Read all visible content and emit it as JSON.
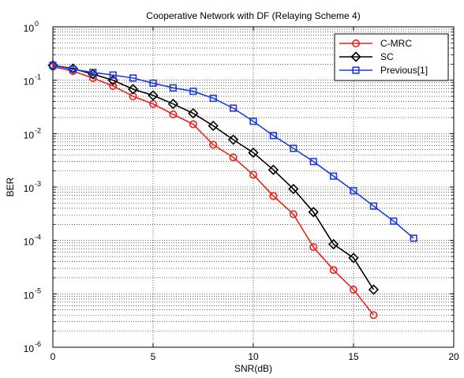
{
  "chart_data": {
    "type": "line",
    "title": "Cooperative Network with DF (Relaying Scheme 4)",
    "xlabel": "SNR(dB)",
    "ylabel": "BER",
    "xlim": [
      0,
      20
    ],
    "ylim": [
      1e-06,
      1
    ],
    "yscale": "log",
    "grid": true,
    "legend_position": "top-right",
    "x_ticks": [
      0,
      5,
      10,
      15,
      20
    ],
    "y_ticks": [
      {
        "value": 1e-06,
        "mantissa": "10",
        "exponent": "-6"
      },
      {
        "value": 1e-05,
        "mantissa": "10",
        "exponent": "-5"
      },
      {
        "value": 0.0001,
        "mantissa": "10",
        "exponent": "-4"
      },
      {
        "value": 0.001,
        "mantissa": "10",
        "exponent": "-3"
      },
      {
        "value": 0.01,
        "mantissa": "10",
        "exponent": "-2"
      },
      {
        "value": 0.1,
        "mantissa": "10",
        "exponent": "-1"
      },
      {
        "value": 1,
        "mantissa": "10",
        "exponent": "0"
      }
    ],
    "series": [
      {
        "name": "C-MRC",
        "color": "#e8221b",
        "marker": "circle",
        "x": [
          0,
          1,
          2,
          3,
          4,
          5,
          6,
          7,
          8,
          9,
          10,
          11,
          12,
          13,
          14,
          15,
          16
        ],
        "y": [
          0.18,
          0.148,
          0.11,
          0.078,
          0.05,
          0.036,
          0.023,
          0.015,
          0.0062,
          0.0036,
          0.0017,
          0.00068,
          0.00031,
          7.5e-05,
          2.8e-05,
          1.2e-05,
          4e-06
        ]
      },
      {
        "name": "SC",
        "color": "#000000",
        "marker": "diamond",
        "x": [
          0,
          1,
          2,
          3,
          4,
          5,
          6,
          7,
          8,
          9,
          10,
          11,
          12,
          13,
          14,
          15,
          16
        ],
        "y": [
          0.19,
          0.165,
          0.13,
          0.1,
          0.068,
          0.052,
          0.036,
          0.024,
          0.014,
          0.0077,
          0.0044,
          0.0021,
          0.00092,
          0.00034,
          8.5e-05,
          4.7e-05,
          1.2e-05
        ]
      },
      {
        "name": "Previous[1]",
        "color": "#1f3ddb",
        "marker": "square",
        "x": [
          0,
          1,
          2,
          3,
          4,
          5,
          6,
          7,
          8,
          9,
          10,
          11,
          12,
          13,
          14,
          15,
          16,
          17,
          18
        ],
        "y": [
          0.19,
          0.16,
          0.14,
          0.125,
          0.11,
          0.088,
          0.072,
          0.062,
          0.046,
          0.03,
          0.017,
          0.0092,
          0.0053,
          0.003,
          0.0016,
          0.00085,
          0.00044,
          0.00023,
          0.00011
        ]
      }
    ]
  }
}
